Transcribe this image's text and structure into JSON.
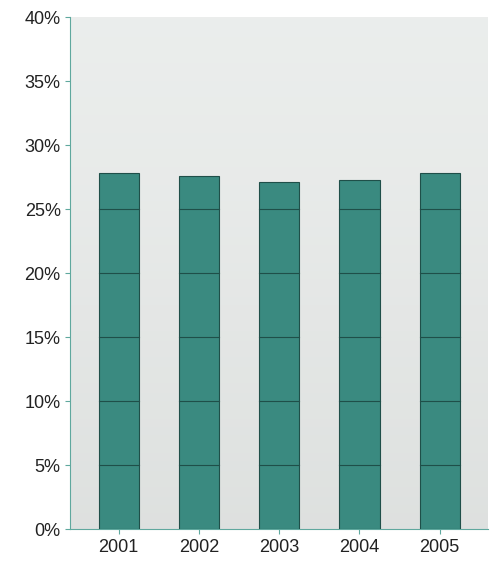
{
  "chart_data": {
    "type": "bar",
    "categories": [
      "2001",
      "2002",
      "2003",
      "2004",
      "2005"
    ],
    "values": [
      27.8,
      27.6,
      27.1,
      27.3,
      27.8
    ],
    "color": "#3a8a80",
    "ylim": [
      0,
      40
    ],
    "yticks": [
      {
        "value": 0,
        "label": "0%"
      },
      {
        "value": 5,
        "label": "5%"
      },
      {
        "value": 10,
        "label": "10%"
      },
      {
        "value": 15,
        "label": "15%"
      },
      {
        "value": 20,
        "label": "20%"
      },
      {
        "value": 25,
        "label": "25%"
      },
      {
        "value": 30,
        "label": "30%"
      },
      {
        "value": 35,
        "label": "35%"
      },
      {
        "value": 40,
        "label": "40%"
      }
    ],
    "grid": false
  }
}
